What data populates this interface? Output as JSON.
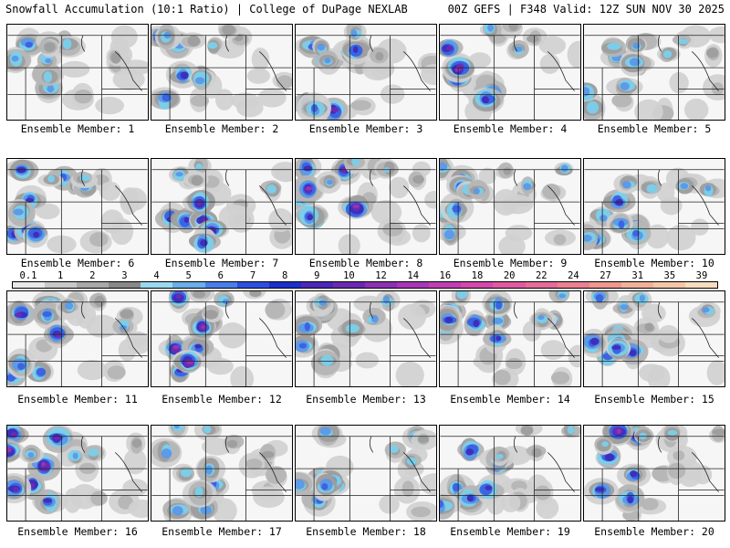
{
  "header": {
    "title": "Snowfall Accumulation (10:1 Ratio) | College of DuPage NEXLAB",
    "run_info": "00Z GEFS | F348 Valid: 12Z SUN NOV 30 2025"
  },
  "members": [
    {
      "label": "Ensemble Member: 1"
    },
    {
      "label": "Ensemble Member: 2"
    },
    {
      "label": "Ensemble Member: 3"
    },
    {
      "label": "Ensemble Member: 4"
    },
    {
      "label": "Ensemble Member: 5"
    },
    {
      "label": "Ensemble Member: 6"
    },
    {
      "label": "Ensemble Member: 7"
    },
    {
      "label": "Ensemble Member: 8"
    },
    {
      "label": "Ensemble Member: 9"
    },
    {
      "label": "Ensemble Member: 10"
    },
    {
      "label": "Ensemble Member: 11"
    },
    {
      "label": "Ensemble Member: 12"
    },
    {
      "label": "Ensemble Member: 13"
    },
    {
      "label": "Ensemble Member: 14"
    },
    {
      "label": "Ensemble Member: 15"
    },
    {
      "label": "Ensemble Member: 16"
    },
    {
      "label": "Ensemble Member: 17"
    },
    {
      "label": "Ensemble Member: 18"
    },
    {
      "label": "Ensemble Member: 19"
    },
    {
      "label": "Ensemble Member: 20"
    }
  ],
  "legend": {
    "labels": [
      "0.1",
      "1",
      "2",
      "3",
      "4",
      "5",
      "6",
      "7",
      "8",
      "9",
      "10",
      "12",
      "14",
      "16",
      "18",
      "20",
      "22",
      "24",
      "27",
      "31",
      "35",
      "39"
    ],
    "colors": [
      "#e8e8e8",
      "#c8c8c8",
      "#a8a8a8",
      "#888888",
      "#9ad8ee",
      "#6aaeea",
      "#4a7ee8",
      "#2e4ee0",
      "#1c2ecc",
      "#4a28b8",
      "#6a2ab0",
      "#8c30b4",
      "#a836b8",
      "#c040b4",
      "#d24aac",
      "#de5aa2",
      "#e66c98",
      "#ec8090",
      "#f09890",
      "#f2b09a",
      "#f4c6a8",
      "#f6dcc0"
    ]
  }
}
